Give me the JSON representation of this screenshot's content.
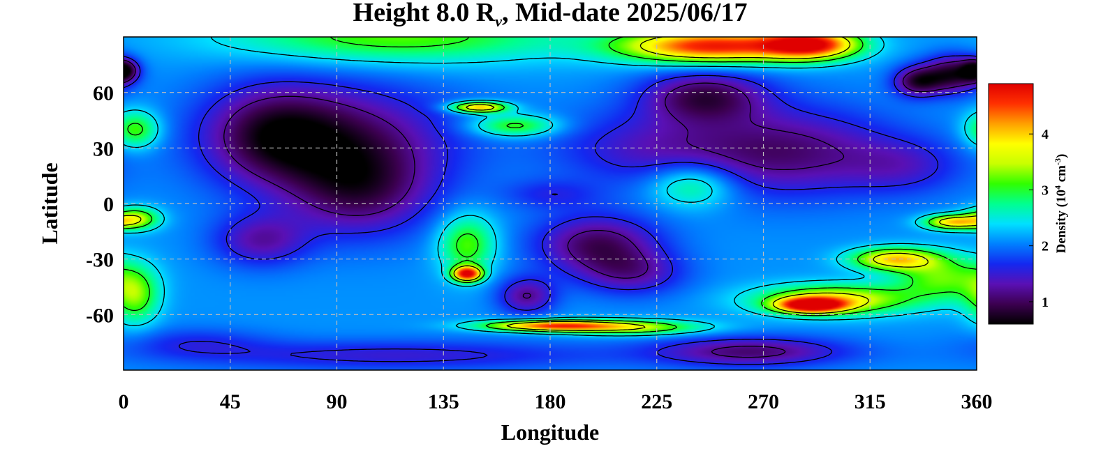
{
  "chart_data": {
    "type": "heatmap",
    "title": {
      "prefix": "Height 8.0 R",
      "subscript": "ν",
      "suffix": ", Mid-date 2025/06/17"
    },
    "xlabel": "Longitude",
    "ylabel": "Latitude",
    "xlim": [
      0,
      360
    ],
    "ylim": [
      -90,
      90
    ],
    "xticks": [
      0,
      45,
      90,
      135,
      180,
      225,
      270,
      315,
      360
    ],
    "yticks": [
      60,
      30,
      0,
      -30,
      -60
    ],
    "yticks_labels": [
      "60",
      "30",
      "0",
      "-30",
      "-60"
    ],
    "grid": true,
    "colorbar": {
      "label_prefix": "Density (10",
      "label_exp1": "4",
      "label_mid": " cm",
      "label_exp2": "-3",
      "label_suffix": ")",
      "range": [
        0.6,
        4.9
      ],
      "ticks": [
        1,
        2,
        3,
        4
      ],
      "colormap": [
        "#000000",
        "#3c0050",
        "#5a10b4",
        "#1428f0",
        "#0080ff",
        "#00e0ff",
        "#00ff90",
        "#30ff00",
        "#c8ff00",
        "#ffff00",
        "#ffa000",
        "#ff3000",
        "#e00000"
      ]
    },
    "background_density": 2.1,
    "features": [
      {
        "lon": 115,
        "lat": 90,
        "density": 3.2,
        "lon_width": 70,
        "lat_width": 14
      },
      {
        "lon": 248,
        "lat": 85,
        "density": 4.7,
        "lon_width": 38,
        "lat_width": 9
      },
      {
        "lon": 290,
        "lat": 86,
        "density": 4.6,
        "lon_width": 20,
        "lat_width": 8
      },
      {
        "lon": 0,
        "lat": 72,
        "density": 0.8,
        "lon_width": 6,
        "lat_width": 6
      },
      {
        "lon": 350,
        "lat": 70,
        "density": 0.8,
        "lon_width": 12,
        "lat_width": 10
      },
      {
        "lon": 335,
        "lat": 66,
        "density": 0.9,
        "lon_width": 10,
        "lat_width": 8
      },
      {
        "lon": 90,
        "lat": 34,
        "density": 1.0,
        "lon_width": 48,
        "lat_width": 30
      },
      {
        "lon": 62,
        "lat": 38,
        "density": 1.3,
        "lon_width": 28,
        "lat_width": 26
      },
      {
        "lon": 100,
        "lat": 5,
        "density": 1.2,
        "lon_width": 30,
        "lat_width": 24
      },
      {
        "lon": 58,
        "lat": -20,
        "density": 1.3,
        "lon_width": 20,
        "lat_width": 14
      },
      {
        "lon": 150,
        "lat": 52,
        "density": 4.2,
        "lon_width": 12,
        "lat_width": 3
      },
      {
        "lon": 165,
        "lat": 42,
        "density": 3.2,
        "lon_width": 18,
        "lat_width": 6
      },
      {
        "lon": 245,
        "lat": 58,
        "density": 1.0,
        "lon_width": 26,
        "lat_width": 14
      },
      {
        "lon": 280,
        "lat": 28,
        "density": 1.1,
        "lon_width": 45,
        "lat_width": 24
      },
      {
        "lon": 220,
        "lat": 30,
        "density": 1.5,
        "lon_width": 40,
        "lat_width": 20
      },
      {
        "lon": 330,
        "lat": 20,
        "density": 1.6,
        "lon_width": 25,
        "lat_width": 15
      },
      {
        "lon": 240,
        "lat": 10,
        "density": 3.0,
        "lon_width": 18,
        "lat_width": 12
      },
      {
        "lon": 180,
        "lat": 5,
        "density": 1.7,
        "lon_width": 20,
        "lat_width": 8
      },
      {
        "lon": 200,
        "lat": -22,
        "density": 1.0,
        "lon_width": 26,
        "lat_width": 16
      },
      {
        "lon": 215,
        "lat": -38,
        "density": 1.4,
        "lon_width": 22,
        "lat_width": 12
      },
      {
        "lon": 170,
        "lat": -50,
        "density": 1.2,
        "lon_width": 12,
        "lat_width": 10
      },
      {
        "lon": 145,
        "lat": -38,
        "density": 4.9,
        "lon_width": 6,
        "lat_width": 4
      },
      {
        "lon": 145,
        "lat": -22,
        "density": 3.2,
        "lon_width": 12,
        "lat_width": 16
      },
      {
        "lon": 180,
        "lat": -66,
        "density": 4.4,
        "lon_width": 28,
        "lat_width": 3
      },
      {
        "lon": 215,
        "lat": -67,
        "density": 3.4,
        "lon_width": 30,
        "lat_width": 4
      },
      {
        "lon": 290,
        "lat": -55,
        "density": 4.7,
        "lon_width": 14,
        "lat_width": 4
      },
      {
        "lon": 300,
        "lat": -52,
        "density": 3.8,
        "lon_width": 32,
        "lat_width": 8
      },
      {
        "lon": 325,
        "lat": -30,
        "density": 3.9,
        "lon_width": 18,
        "lat_width": 6
      },
      {
        "lon": 350,
        "lat": -10,
        "density": 4.0,
        "lon_width": 12,
        "lat_width": 4
      },
      {
        "lon": 345,
        "lat": -40,
        "density": 3.2,
        "lon_width": 20,
        "lat_width": 12
      },
      {
        "lon": 5,
        "lat": -8,
        "density": 3.5,
        "lon_width": 10,
        "lat_width": 6
      },
      {
        "lon": 5,
        "lat": -50,
        "density": 3.2,
        "lon_width": 10,
        "lat_width": 15
      },
      {
        "lon": 5,
        "lat": 40,
        "density": 3.2,
        "lon_width": 10,
        "lat_width": 10
      },
      {
        "lon": 115,
        "lat": -82,
        "density": 1.5,
        "lon_width": 90,
        "lat_width": 8
      },
      {
        "lon": 265,
        "lat": -80,
        "density": 1.1,
        "lon_width": 40,
        "lat_width": 8
      },
      {
        "lon": 30,
        "lat": -75,
        "density": 1.7,
        "lon_width": 30,
        "lat_width": 8
      }
    ],
    "contour_levels": [
      1.2,
      1.6,
      2.4,
      3.0,
      3.6
    ]
  }
}
